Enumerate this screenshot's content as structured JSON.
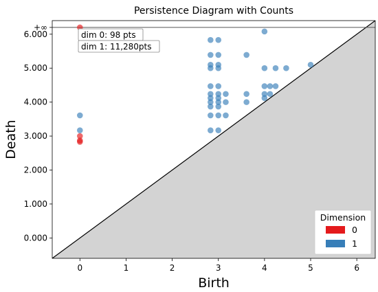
{
  "chart_data": {
    "type": "scatter",
    "title": "Persistence Diagram with Counts",
    "xlabel": "Birth",
    "ylabel": "Death",
    "xlim": [
      -0.6,
      6.4
    ],
    "ylim": [
      -0.6,
      6.4
    ],
    "x_ticks": [
      0,
      1,
      2,
      3,
      4,
      5,
      6
    ],
    "x_tick_labels": [
      "0",
      "1",
      "2",
      "3",
      "4",
      "5",
      "6"
    ],
    "y_ticks": [
      0,
      1,
      2,
      3,
      4,
      5,
      6
    ],
    "y_tick_labels": [
      "0.000",
      "1.000",
      "2.000",
      "3.000",
      "4.000",
      "5.000",
      "6.000"
    ],
    "infinity_value": 6.2,
    "infinity_label": "+∞",
    "grid": false,
    "diagonal": true,
    "legend": {
      "title": "Dimension",
      "placement": "bottom-right",
      "entries": [
        {
          "label": "0",
          "color": "#e41a1c"
        },
        {
          "label": "1",
          "color": "#377eb8"
        }
      ]
    },
    "annotations": [
      "dim 0: 98 pts",
      "dim 1: 11,280pts"
    ],
    "series": [
      {
        "name": "0",
        "color": "#e41a1c",
        "points": [
          [
            0,
            2.83
          ],
          [
            0,
            2.87
          ],
          [
            0,
            3.0
          ],
          [
            0,
            6.2
          ]
        ]
      },
      {
        "name": "1",
        "color": "#377eb8",
        "points": [
          [
            0,
            3.17
          ],
          [
            0,
            3.61
          ],
          [
            2.83,
            3.17
          ],
          [
            2.83,
            3.61
          ],
          [
            2.83,
            3.87
          ],
          [
            2.83,
            4.0
          ],
          [
            2.83,
            4.12
          ],
          [
            2.83,
            4.24
          ],
          [
            2.83,
            4.47
          ],
          [
            2.83,
            5.0
          ],
          [
            2.83,
            5.1
          ],
          [
            2.83,
            5.39
          ],
          [
            2.83,
            5.83
          ],
          [
            3.0,
            3.17
          ],
          [
            3.0,
            3.61
          ],
          [
            3.0,
            3.87
          ],
          [
            3.0,
            4.0
          ],
          [
            3.0,
            4.12
          ],
          [
            3.0,
            4.24
          ],
          [
            3.0,
            4.47
          ],
          [
            3.0,
            5.0
          ],
          [
            3.0,
            5.1
          ],
          [
            3.0,
            5.39
          ],
          [
            3.0,
            5.83
          ],
          [
            3.16,
            3.61
          ],
          [
            3.16,
            4.0
          ],
          [
            3.16,
            4.24
          ],
          [
            3.61,
            4.0
          ],
          [
            3.61,
            4.24
          ],
          [
            3.61,
            5.39
          ],
          [
            4.0,
            4.12
          ],
          [
            4.0,
            4.24
          ],
          [
            4.0,
            4.47
          ],
          [
            4.0,
            5.0
          ],
          [
            4.0,
            6.08
          ],
          [
            4.12,
            4.24
          ],
          [
            4.12,
            4.47
          ],
          [
            4.24,
            4.47
          ],
          [
            4.24,
            5.0
          ],
          [
            4.47,
            5.0
          ],
          [
            5.0,
            5.1
          ]
        ]
      }
    ]
  }
}
